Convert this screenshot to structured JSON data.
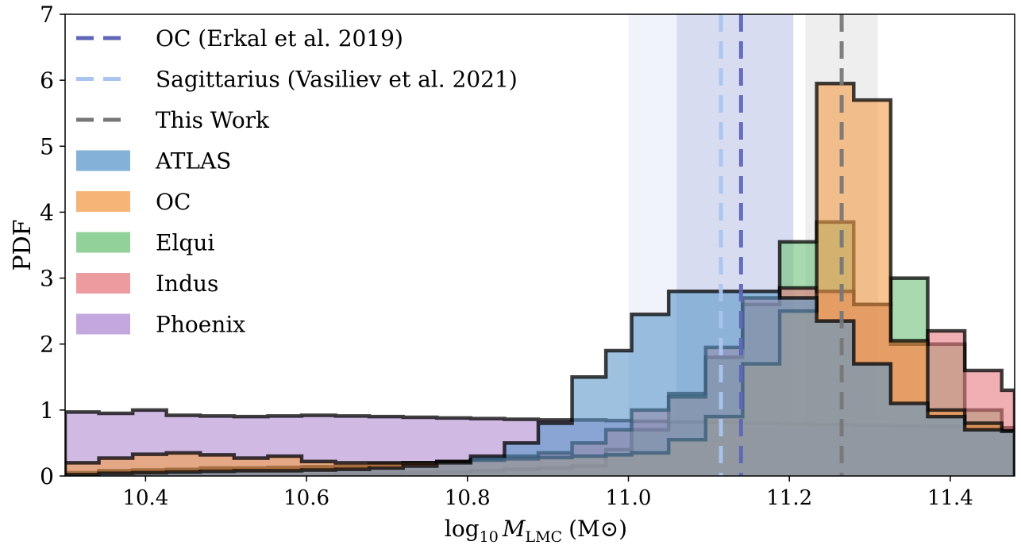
{
  "chart_data": {
    "type": "histogram",
    "title": "",
    "xlabel_main": "log",
    "xlabel_sub": "10",
    "xlabel_var": "M",
    "xlabel_var_sub": "LMC",
    "xlabel_unit": "(M⊙)",
    "ylabel": "PDF",
    "xlim": [
      10.3,
      11.48
    ],
    "ylim": [
      0,
      7
    ],
    "xticks": [
      10.4,
      10.6,
      10.8,
      11.0,
      11.2,
      11.4
    ],
    "xtick_labels": [
      "10.4",
      "10.6",
      "10.8",
      "11.0",
      "11.2",
      "11.4"
    ],
    "yticks": [
      0,
      1,
      2,
      3,
      4,
      5,
      6,
      7
    ],
    "ytick_labels": [
      "0",
      "1",
      "2",
      "3",
      "4",
      "5",
      "6",
      "7"
    ],
    "bin_edges": [
      10.3,
      10.342,
      10.384,
      10.426,
      10.468,
      10.51,
      10.552,
      10.594,
      10.636,
      10.678,
      10.72,
      10.762,
      10.804,
      10.846,
      10.888,
      10.93,
      10.972,
      11.004,
      11.05,
      11.096,
      11.142,
      11.188,
      11.234,
      11.28,
      11.326,
      11.372,
      11.418,
      11.464,
      11.48
    ],
    "bands": [
      {
        "name": "Sagittarius",
        "range": [
          11.0,
          11.205
        ],
        "color": "#c8d0f0",
        "opacity": 0.25
      },
      {
        "name": "OC",
        "range": [
          11.06,
          11.205
        ],
        "color": "#9fa8dc",
        "opacity": 0.3
      },
      {
        "name": "This Work",
        "range": [
          11.22,
          11.31
        ],
        "color": "#bbbbbb",
        "opacity": 0.25
      }
    ],
    "vlines": [
      {
        "name": "OC (Erkal et al. 2019)",
        "x": 11.14,
        "color": "#5f66b8"
      },
      {
        "name": "Sagittarius (Vasiliev et al. 2021)",
        "x": 11.115,
        "color": "#a9c4ef"
      },
      {
        "name": "This Work",
        "x": 11.265,
        "color": "#777777"
      }
    ],
    "series": [
      {
        "name": "Phoenix",
        "color": "#b08ad0",
        "values": [
          0.97,
          0.95,
          1.0,
          0.92,
          0.91,
          0.9,
          0.91,
          0.92,
          0.91,
          0.9,
          0.89,
          0.88,
          0.87,
          0.86,
          0.85,
          0.85,
          0.84,
          0.83,
          0.82,
          0.82,
          0.8,
          0.79,
          0.78,
          0.77,
          0.76,
          0.75,
          0.74,
          0.73
        ]
      },
      {
        "name": "Elqui",
        "color": "#6fc27a",
        "values": [
          0.0,
          0.02,
          0.03,
          0.02,
          0.02,
          0.03,
          0.03,
          0.02,
          0.03,
          0.04,
          0.05,
          0.06,
          0.08,
          0.1,
          0.12,
          0.15,
          0.4,
          0.7,
          1.25,
          1.8,
          2.6,
          3.55,
          3.85,
          2.6,
          3.0,
          2.0,
          1.0,
          0.7
        ]
      },
      {
        "name": "Indus",
        "color": "#e67a7f",
        "values": [
          0.05,
          0.08,
          0.09,
          0.1,
          0.12,
          0.12,
          0.13,
          0.14,
          0.15,
          0.18,
          0.2,
          0.22,
          0.25,
          0.3,
          0.35,
          0.5,
          0.7,
          1.0,
          1.2,
          1.95,
          2.7,
          2.85,
          2.8,
          2.6,
          2.0,
          2.2,
          1.6,
          1.3
        ]
      },
      {
        "name": "OC",
        "color": "#f39c4a",
        "values": [
          0.2,
          0.27,
          0.33,
          0.35,
          0.32,
          0.27,
          0.3,
          0.22,
          0.2,
          0.2,
          0.2,
          0.22,
          0.24,
          0.26,
          0.28,
          0.3,
          0.32,
          0.35,
          0.55,
          0.9,
          1.7,
          2.5,
          5.95,
          5.7,
          2.05,
          1.0,
          0.8,
          0.68
        ]
      },
      {
        "name": "ATLAS",
        "color": "#5b97c9",
        "values": [
          0.02,
          0.04,
          0.05,
          0.06,
          0.07,
          0.08,
          0.08,
          0.09,
          0.1,
          0.12,
          0.15,
          0.2,
          0.3,
          0.5,
          0.8,
          1.5,
          1.9,
          2.45,
          2.8,
          2.8,
          2.8,
          2.7,
          2.35,
          1.7,
          1.1,
          0.9,
          0.7,
          0.68
        ]
      }
    ],
    "legend": {
      "placement": "top-left",
      "lines": [
        "OC (Erkal et al. 2019)",
        "Sagittarius (Vasiliev et al. 2021)",
        "This Work"
      ],
      "patches": [
        "ATLAS",
        "OC",
        "Elqui",
        "Indus",
        "Phoenix"
      ]
    },
    "grid": false
  }
}
